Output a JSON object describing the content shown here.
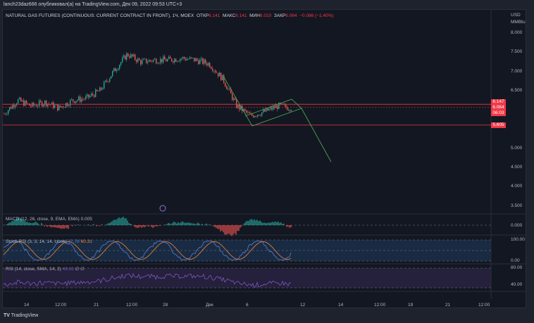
{
  "publish_line": "lanch23daz666 опубликовал(а) на TradingView.com, Дек 09, 2022 09:53 UTC+3",
  "symbol": {
    "name": "NATURAL GAS FUTURES (CONTINUOUS: CURRENT CONTRACT IN FRONT), 1Ч, MOEX",
    "open_label": "ОТКР",
    "open": "6.141",
    "high_label": "МАКС",
    "high": "6.141",
    "low_label": "МИН",
    "low": "6.010",
    "close_label": "ЗАКР",
    "close": "6.064",
    "change": "−0.086 (−1.40%)"
  },
  "price_axis": {
    "currency": "USD",
    "unit": "MMBtu",
    "ticks": [
      "8.000",
      "7.500",
      "7.000",
      "6.500",
      "5.000",
      "4.500",
      "4.000",
      "3.500"
    ]
  },
  "price_tags": {
    "level_high": "6.147",
    "last": "6.064",
    "countdown": "06:03",
    "level_low": "5.605"
  },
  "price_path": [
    5.9,
    6.25,
    6.1,
    6.2,
    6.05,
    6.25,
    6.3,
    6.5,
    7.0,
    7.45,
    7.25,
    7.3,
    7.3,
    7.35,
    7.3,
    7.2,
    6.8,
    6.1,
    5.85,
    5.95,
    6.1,
    6.06
  ],
  "indicators": {
    "macd": {
      "label": "MACD (12, 26, close, 9, EMA, EMA)",
      "value": "0.005",
      "axis": "0.000"
    },
    "stoch_rsi": {
      "label": "Stoch RSI (3, 3, 14, 14, close)",
      "k": "37.78",
      "d": "60.31",
      "axis_top": "100.00",
      "axis_bottom": "0.00"
    },
    "rsi": {
      "label": "RSI (14, close, SMA, 14, 2)",
      "value": "49.93",
      "extra": "∅ ∅",
      "axis_top": "80.00",
      "axis_bottom": "40.00"
    }
  },
  "time_axis": [
    "14",
    "12:00",
    "21",
    "12:00",
    "28",
    "Дек",
    "6",
    "12",
    "14",
    "12:00",
    "19",
    "21",
    "12:00"
  ],
  "colors": {
    "up": "#26a69a",
    "down": "#ef5350",
    "level": "#f23645",
    "drawing": "#4caf50",
    "stoch_k": "#5b7fd6",
    "stoch_d": "#f0853a",
    "rsi": "#7e57c2"
  },
  "footer": "TradingView"
}
